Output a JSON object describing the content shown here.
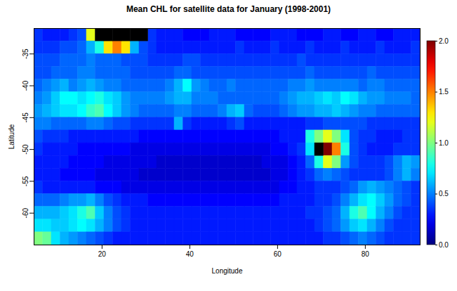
{
  "chart_data": {
    "type": "heatmap",
    "title": "Mean CHL for satellite data for January (1998-2001)",
    "x_label": "Longitude",
    "y_label": "Latitude",
    "x": [
      5.5,
      7.5,
      9.5,
      11.5,
      13.5,
      15.5,
      17.5,
      19.5,
      21.5,
      23.5,
      25.5,
      27.5,
      29.5,
      31.5,
      33.5,
      35.5,
      37.5,
      39.5,
      41.5,
      43.5,
      45.5,
      47.5,
      49.5,
      51.5,
      53.5,
      55.5,
      57.5,
      59.5,
      61.5,
      63.5,
      65.5,
      67.5,
      69.5,
      71.5,
      73.5,
      75.5,
      77.5,
      79.5,
      81.5,
      83.5,
      85.5,
      87.5,
      89.5,
      91.5
    ],
    "y": [
      -32,
      -34,
      -36,
      -38,
      -40,
      -42,
      -44,
      -46,
      -48,
      -50,
      -52,
      -54,
      -56,
      -58,
      -60,
      -62,
      -64
    ],
    "values": [
      [
        0.35,
        0.3,
        0.3,
        0.3,
        0.35,
        0.4,
        1.2,
        null,
        null,
        null,
        null,
        null,
        null,
        0.35,
        0.3,
        0.3,
        0.3,
        0.25,
        0.25,
        0.25,
        0.3,
        0.3,
        0.3,
        0.25,
        0.25,
        0.25,
        0.25,
        0.3,
        0.3,
        0.3,
        0.25,
        0.25,
        0.25,
        0.3,
        0.3,
        0.25,
        0.25,
        0.3,
        0.3,
        0.25,
        0.25,
        0.3,
        0.3,
        0.3
      ],
      [
        0.35,
        0.35,
        0.35,
        0.4,
        0.4,
        0.45,
        0.6,
        0.8,
        1.3,
        1.5,
        1.3,
        0.6,
        0.4,
        0.35,
        0.3,
        0.3,
        0.3,
        0.3,
        0.3,
        0.3,
        0.3,
        0.3,
        0.3,
        0.35,
        0.3,
        0.3,
        0.3,
        0.35,
        0.3,
        0.3,
        0.3,
        0.35,
        0.3,
        0.3,
        0.3,
        0.35,
        0.3,
        0.3,
        0.3,
        0.35,
        0.3,
        0.3,
        0.3,
        0.35
      ],
      [
        0.4,
        0.4,
        0.4,
        0.45,
        0.45,
        0.45,
        0.5,
        0.45,
        0.45,
        0.45,
        0.4,
        0.4,
        0.4,
        0.35,
        0.35,
        0.35,
        0.35,
        0.4,
        0.4,
        0.35,
        0.35,
        0.35,
        0.35,
        0.35,
        0.35,
        0.35,
        0.35,
        0.35,
        0.35,
        0.35,
        0.4,
        0.35,
        0.35,
        0.35,
        0.35,
        0.35,
        0.35,
        0.35,
        0.35,
        0.35,
        0.35,
        0.35,
        0.35,
        0.35
      ],
      [
        0.4,
        0.4,
        0.45,
        0.45,
        0.45,
        0.5,
        0.5,
        0.45,
        0.45,
        0.45,
        0.45,
        0.4,
        0.4,
        0.4,
        0.4,
        0.4,
        0.45,
        0.45,
        0.4,
        0.4,
        0.4,
        0.4,
        0.4,
        0.4,
        0.4,
        0.4,
        0.4,
        0.4,
        0.4,
        0.4,
        0.4,
        0.45,
        0.4,
        0.4,
        0.4,
        0.4,
        0.4,
        0.4,
        0.45,
        0.4,
        0.4,
        0.4,
        0.4,
        0.4
      ],
      [
        0.45,
        0.5,
        0.55,
        0.6,
        0.5,
        0.55,
        0.6,
        0.55,
        0.5,
        0.5,
        0.45,
        0.45,
        0.45,
        0.45,
        0.45,
        0.5,
        0.6,
        0.75,
        0.55,
        0.5,
        0.45,
        0.45,
        0.5,
        0.45,
        0.45,
        0.45,
        0.45,
        0.45,
        0.45,
        0.5,
        0.5,
        0.55,
        0.5,
        0.5,
        0.5,
        0.5,
        0.5,
        0.45,
        0.5,
        0.5,
        0.45,
        0.45,
        0.45,
        0.45
      ],
      [
        0.5,
        0.55,
        0.65,
        0.75,
        0.75,
        0.7,
        0.75,
        0.8,
        0.7,
        0.65,
        0.55,
        0.5,
        0.5,
        0.5,
        0.5,
        0.55,
        0.6,
        0.6,
        0.5,
        0.5,
        0.5,
        0.45,
        0.45,
        0.45,
        0.45,
        0.45,
        0.45,
        0.45,
        0.5,
        0.55,
        0.6,
        0.6,
        0.65,
        0.7,
        0.65,
        0.75,
        0.7,
        0.6,
        0.55,
        0.55,
        0.5,
        0.5,
        0.5,
        0.45
      ],
      [
        0.55,
        0.6,
        0.65,
        0.7,
        0.7,
        0.75,
        0.85,
        0.9,
        0.75,
        0.65,
        0.55,
        0.5,
        0.45,
        0.45,
        0.45,
        0.45,
        0.5,
        0.5,
        0.45,
        0.45,
        0.45,
        0.5,
        0.6,
        0.65,
        0.45,
        0.4,
        0.4,
        0.4,
        0.45,
        0.5,
        0.55,
        0.55,
        0.6,
        0.6,
        0.65,
        0.6,
        0.55,
        0.5,
        0.5,
        0.45,
        0.45,
        0.45,
        0.45,
        0.45
      ],
      [
        0.5,
        0.5,
        0.45,
        0.45,
        0.45,
        0.45,
        0.5,
        0.5,
        0.45,
        0.4,
        0.4,
        0.35,
        0.35,
        0.35,
        0.35,
        0.35,
        0.6,
        0.35,
        0.3,
        0.3,
        0.3,
        0.3,
        0.35,
        0.4,
        0.3,
        0.3,
        0.3,
        0.3,
        0.3,
        0.3,
        0.3,
        0.35,
        0.35,
        0.4,
        0.4,
        0.4,
        0.4,
        0.4,
        0.35,
        0.35,
        0.35,
        0.35,
        0.35,
        0.35
      ],
      [
        0.4,
        0.35,
        0.35,
        0.35,
        0.3,
        0.3,
        0.3,
        0.3,
        0.3,
        0.3,
        0.3,
        0.3,
        0.25,
        0.25,
        0.25,
        0.25,
        0.25,
        0.25,
        0.25,
        0.25,
        0.25,
        0.25,
        0.25,
        0.25,
        0.25,
        0.25,
        0.25,
        0.25,
        0.3,
        0.3,
        0.3,
        0.8,
        1.0,
        1.2,
        1.0,
        0.7,
        0.4,
        0.35,
        0.35,
        0.3,
        0.3,
        0.3,
        0.35,
        0.35
      ],
      [
        0.35,
        0.3,
        0.3,
        0.3,
        0.3,
        0.25,
        0.25,
        0.25,
        0.25,
        0.25,
        0.25,
        0.2,
        0.2,
        0.2,
        0.2,
        0.2,
        0.2,
        0.2,
        0.2,
        0.2,
        0.2,
        0.2,
        0.2,
        0.2,
        0.2,
        0.2,
        0.2,
        0.25,
        0.25,
        0.3,
        0.35,
        0.7,
        null,
        2.0,
        1.5,
        0.8,
        0.4,
        0.35,
        0.3,
        0.3,
        0.3,
        0.35,
        0.35,
        0.35
      ],
      [
        0.3,
        0.3,
        0.3,
        0.3,
        0.25,
        0.25,
        0.25,
        0.25,
        0.2,
        0.2,
        0.2,
        0.2,
        0.2,
        0.2,
        0.15,
        0.15,
        0.15,
        0.15,
        0.15,
        0.15,
        0.15,
        0.15,
        0.15,
        0.15,
        0.15,
        0.15,
        0.2,
        0.2,
        0.2,
        0.25,
        0.3,
        0.45,
        0.8,
        1.2,
        1.0,
        0.55,
        0.4,
        0.35,
        0.35,
        0.35,
        0.4,
        0.5,
        0.6,
        0.55
      ],
      [
        0.3,
        0.3,
        0.3,
        0.25,
        0.25,
        0.25,
        0.25,
        0.2,
        0.2,
        0.2,
        0.2,
        0.2,
        0.15,
        0.15,
        0.15,
        0.15,
        0.15,
        0.15,
        0.15,
        0.15,
        0.15,
        0.15,
        0.15,
        0.15,
        0.15,
        0.15,
        0.15,
        0.2,
        0.2,
        0.25,
        0.3,
        0.35,
        0.45,
        0.5,
        0.45,
        0.4,
        0.35,
        0.35,
        0.35,
        0.35,
        0.4,
        0.5,
        0.6,
        0.5
      ],
      [
        0.35,
        0.3,
        0.3,
        0.3,
        0.3,
        0.3,
        0.3,
        0.25,
        0.25,
        0.25,
        0.2,
        0.2,
        0.2,
        0.2,
        0.2,
        0.2,
        0.2,
        0.2,
        0.2,
        0.2,
        0.2,
        0.2,
        0.2,
        0.2,
        0.2,
        0.2,
        0.2,
        0.2,
        0.25,
        0.25,
        0.3,
        0.3,
        0.35,
        0.35,
        0.35,
        0.4,
        0.45,
        0.55,
        0.6,
        0.55,
        0.5,
        0.45,
        0.4,
        0.35
      ],
      [
        0.45,
        0.45,
        0.45,
        0.5,
        0.55,
        0.55,
        0.6,
        0.5,
        0.4,
        0.35,
        0.3,
        0.3,
        0.3,
        0.25,
        0.25,
        0.25,
        0.25,
        0.25,
        0.25,
        0.25,
        0.25,
        0.25,
        0.25,
        0.25,
        0.25,
        0.25,
        0.25,
        0.25,
        0.3,
        0.3,
        0.3,
        0.3,
        0.35,
        0.35,
        0.4,
        0.5,
        0.6,
        0.7,
        0.75,
        0.65,
        0.55,
        0.45,
        0.4,
        0.35
      ],
      [
        0.6,
        0.6,
        0.6,
        0.65,
        0.7,
        0.8,
        0.9,
        0.65,
        0.5,
        0.4,
        0.35,
        0.3,
        0.3,
        0.3,
        0.3,
        0.3,
        0.3,
        0.3,
        0.3,
        0.3,
        0.3,
        0.3,
        0.3,
        0.3,
        0.3,
        0.3,
        0.3,
        0.3,
        0.3,
        0.3,
        0.3,
        0.35,
        0.35,
        0.4,
        0.45,
        0.6,
        0.8,
        0.9,
        0.75,
        0.6,
        0.5,
        0.4,
        0.35,
        0.35
      ],
      [
        0.7,
        0.7,
        0.65,
        0.65,
        0.7,
        0.75,
        0.7,
        0.6,
        0.5,
        0.4,
        0.35,
        0.3,
        0.3,
        0.3,
        0.3,
        0.3,
        0.3,
        0.3,
        0.3,
        0.3,
        0.3,
        0.3,
        0.3,
        0.3,
        0.3,
        0.3,
        0.3,
        0.3,
        0.3,
        0.3,
        0.3,
        0.3,
        0.35,
        0.4,
        0.45,
        0.55,
        0.65,
        0.7,
        0.6,
        0.5,
        0.4,
        0.35,
        0.35,
        0.35
      ],
      [
        1.0,
        0.95,
        0.7,
        0.6,
        0.55,
        0.5,
        0.45,
        0.4,
        0.35,
        0.3,
        0.3,
        0.3,
        0.3,
        0.3,
        0.3,
        0.3,
        0.3,
        0.3,
        0.3,
        0.3,
        0.3,
        0.3,
        0.3,
        0.3,
        0.3,
        0.3,
        0.3,
        0.3,
        0.3,
        0.3,
        0.3,
        0.3,
        0.3,
        0.35,
        0.35,
        0.4,
        0.45,
        0.5,
        0.45,
        0.4,
        0.35,
        0.35,
        0.35,
        0.35
      ]
    ],
    "xlim": [
      4.5,
      92.5
    ],
    "ylim": [
      -65,
      -31
    ],
    "xticks": [
      20,
      40,
      60,
      80
    ],
    "yticks": [
      -60,
      -55,
      -50,
      -45,
      -40,
      -35
    ],
    "colorbar": {
      "range": [
        0,
        2
      ],
      "ticks": [
        {
          "value": 0,
          "label": "0.0"
        },
        {
          "value": 0.5,
          "label": "0.5"
        },
        {
          "value": 1,
          "label": "1.0"
        },
        {
          "value": 1.5,
          "label": "1.5"
        },
        {
          "value": 2,
          "label": "2.0"
        }
      ]
    }
  }
}
